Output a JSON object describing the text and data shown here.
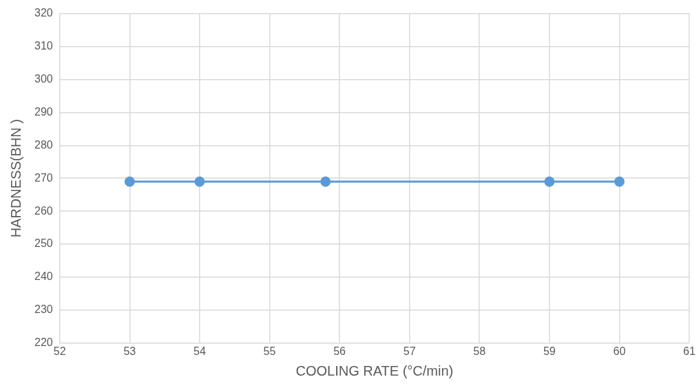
{
  "chart_data": {
    "type": "line",
    "xlabel": "COOLING RATE (°C/min)",
    "ylabel": "HARDNESS(BHN )",
    "x": [
      53,
      54,
      55.8,
      59,
      60
    ],
    "series": [
      {
        "color": "#5b9bd5",
        "values": [
          269,
          269,
          269,
          269,
          269
        ]
      }
    ],
    "xlim": [
      52,
      61
    ],
    "xticks": [
      52,
      53,
      54,
      55,
      56,
      57,
      58,
      59,
      60,
      61
    ],
    "ylim": [
      220,
      320
    ],
    "yticks": [
      220,
      230,
      240,
      250,
      260,
      270,
      280,
      290,
      300,
      310,
      320
    ],
    "grid": true,
    "legend": false,
    "marker": "circle",
    "line_style": "solid"
  }
}
